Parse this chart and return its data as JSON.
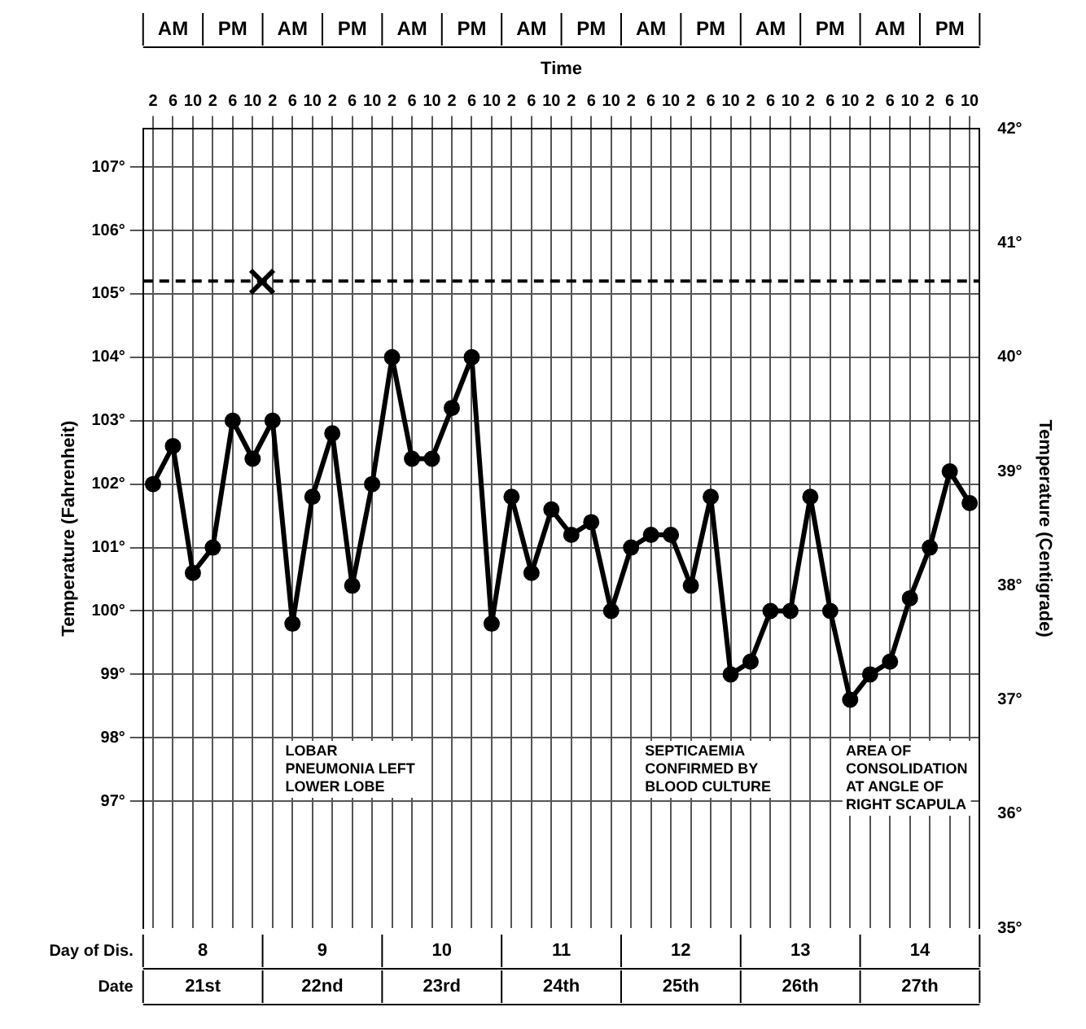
{
  "chart_data": {
    "type": "line",
    "xlabel": "Time",
    "ylabel": "Temperature (Fahrenheit)",
    "y2label": "Temperature (Centigrade)",
    "categories": [
      "2",
      "6",
      "10",
      "2",
      "6",
      "10",
      "2",
      "6",
      "10",
      "2",
      "6",
      "10",
      "2",
      "6",
      "10",
      "2",
      "6",
      "10",
      "2",
      "6",
      "10",
      "2",
      "6",
      "10",
      "2",
      "6",
      "10",
      "2",
      "6",
      "10",
      "2",
      "6",
      "10",
      "2",
      "6",
      "10",
      "2",
      "6",
      "10",
      "2",
      "6",
      "10"
    ],
    "ylim": [
      95,
      107.6
    ],
    "yticks": [
      {
        "value": 97,
        "label": "97°"
      },
      {
        "value": 98,
        "label": "98°"
      },
      {
        "value": 99,
        "label": "99°"
      },
      {
        "value": 100,
        "label": "100°"
      },
      {
        "value": 101,
        "label": "101°"
      },
      {
        "value": 102,
        "label": "102°"
      },
      {
        "value": 103,
        "label": "103°"
      },
      {
        "value": 104,
        "label": "104°"
      },
      {
        "value": 105,
        "label": "105°"
      },
      {
        "value": 106,
        "label": "106°"
      },
      {
        "value": 107,
        "label": "107°"
      }
    ],
    "y2lim": [
      35,
      42
    ],
    "y2ticks": [
      {
        "value": 35,
        "label": "35°"
      },
      {
        "value": 36,
        "label": "36°"
      },
      {
        "value": 37,
        "label": "37°"
      },
      {
        "value": 38,
        "label": "38°"
      },
      {
        "value": 39,
        "label": "39°"
      },
      {
        "value": 40,
        "label": "40°"
      },
      {
        "value": 41,
        "label": "41°"
      },
      {
        "value": 42,
        "label": "42°"
      }
    ],
    "grid": true,
    "legend": false,
    "marker": "circle",
    "series": [
      {
        "color": "#000000",
        "values": [
          102.0,
          102.6,
          100.6,
          101.0,
          103.0,
          102.4,
          103.0,
          99.8,
          101.8,
          102.8,
          100.4,
          102.0,
          104.0,
          102.4,
          102.4,
          103.2,
          104.0,
          99.8,
          101.8,
          100.6,
          101.6,
          101.2,
          101.4,
          100.0,
          101.0,
          101.2,
          101.2,
          100.4,
          101.8,
          99.0,
          99.2,
          100.0,
          100.0,
          101.8,
          100.0,
          98.6,
          99.0,
          99.2,
          100.2,
          101.0,
          102.2,
          101.7
        ]
      }
    ],
    "ref_lines": [
      {
        "axis": "y",
        "value": 105.2,
        "line_style": "dashed",
        "color": "#000000"
      }
    ],
    "annotations": [
      "LOBAR PNEUMONIA LEFT LOWER LOBE",
      "SEPTICAEMIA CONFIRMED BY BLOOD CULTURE",
      "AREA OF CONSOLIDATION AT ANGLE OF RIGHT SCAPULA",
      "AM",
      "PM",
      "AM",
      "PM",
      "AM",
      "PM",
      "AM",
      "PM",
      "AM",
      "PM",
      "AM",
      "PM",
      "AM",
      "PM",
      "Day of Dis.",
      "8",
      "9",
      "10",
      "11",
      "12",
      "13",
      "14",
      "Date",
      "21st",
      "22nd",
      "23rd",
      "24th",
      "25th",
      "26th",
      "27th"
    ]
  }
}
